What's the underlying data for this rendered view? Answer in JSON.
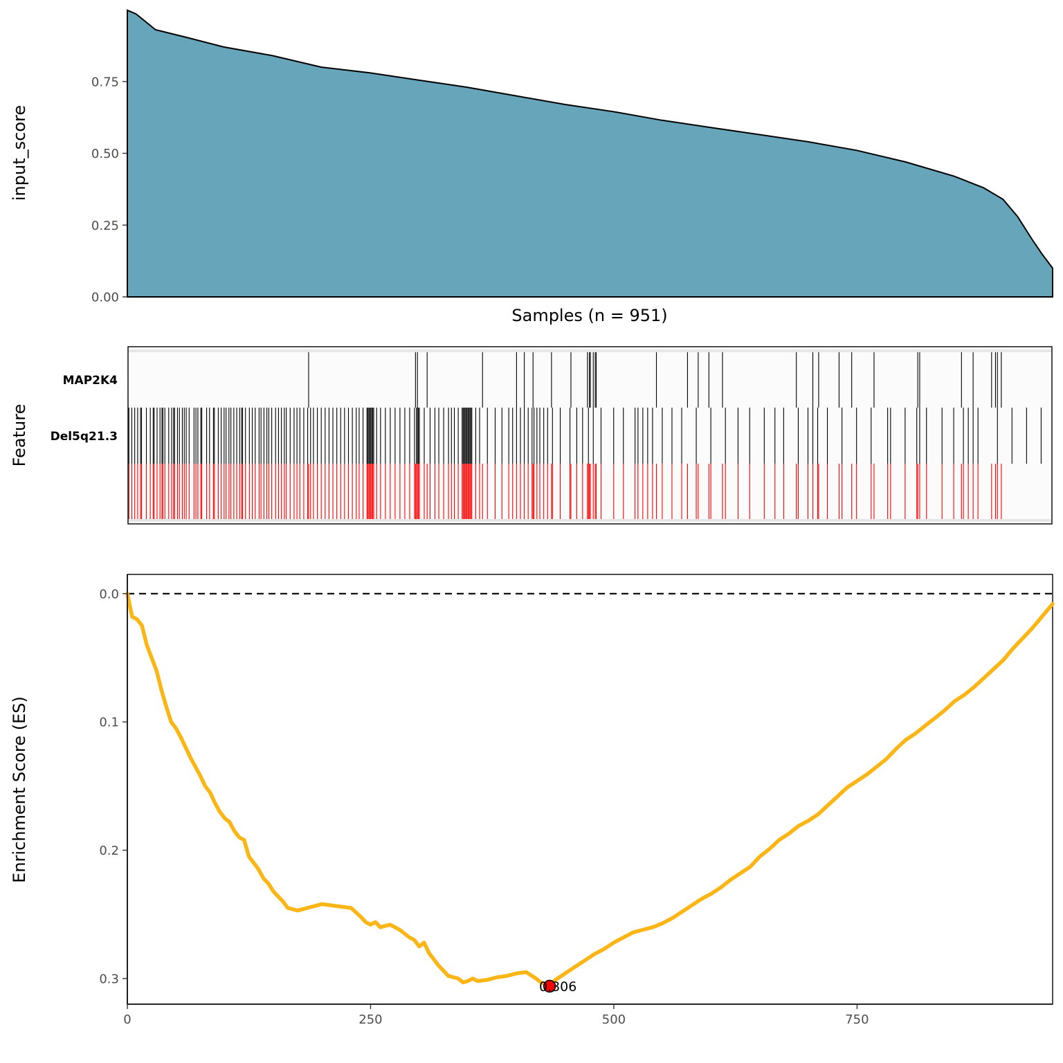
{
  "colors": {
    "area_fill": "#67a5ba",
    "area_stroke": "#000000",
    "feature_hit": "#000000",
    "combined_hit": "#ff0000",
    "background_track": "#e6e6e6",
    "es_line": "#fbb615",
    "peak_point": "#ff0000"
  },
  "chart_data": [
    {
      "type": "area",
      "ylabel": "input_score",
      "xlabel": "Samples (n = 951)",
      "n_samples": 951,
      "ylim": [
        0,
        1.0
      ],
      "yticks": [
        0.0,
        0.25,
        0.5,
        0.75
      ],
      "ytick_labels": [
        "0.00",
        "0.25",
        "0.50",
        "0.75"
      ],
      "x": [
        1,
        10,
        30,
        60,
        100,
        150,
        200,
        250,
        300,
        350,
        400,
        450,
        500,
        550,
        600,
        650,
        700,
        750,
        800,
        850,
        880,
        900,
        915,
        930,
        940,
        951
      ],
      "values": [
        0.998,
        0.985,
        0.93,
        0.905,
        0.87,
        0.84,
        0.8,
        0.78,
        0.755,
        0.73,
        0.7,
        0.67,
        0.645,
        0.615,
        0.59,
        0.565,
        0.54,
        0.51,
        0.47,
        0.42,
        0.38,
        0.34,
        0.28,
        0.2,
        0.15,
        0.1
      ]
    },
    {
      "type": "heatmap",
      "ylabel": "Feature",
      "rows": [
        {
          "label": "MAP2K4",
          "color": "#000000",
          "hits": [
            186,
            296,
            298,
            308,
            365,
            400,
            408,
            417,
            436,
            456,
            473,
            475,
            476,
            479,
            481,
            482,
            544,
            576,
            587,
            598,
            612,
            688,
            705,
            711,
            732,
            745,
            768,
            813,
            815,
            858,
            870,
            889,
            893,
            895,
            899
          ]
        },
        {
          "label": "Del5q21.3",
          "color": "#000000",
          "hits": [
            1,
            4,
            7,
            10,
            13,
            14,
            19,
            23,
            26,
            27,
            30,
            33,
            35,
            36,
            38,
            42,
            45,
            47,
            48,
            51,
            53,
            56,
            58,
            60,
            63,
            68,
            70,
            72,
            75,
            76,
            81,
            84,
            88,
            89,
            93,
            96,
            99,
            101,
            104,
            106,
            109,
            112,
            115,
            117,
            118,
            121,
            125,
            128,
            131,
            135,
            137,
            140,
            143,
            145,
            148,
            152,
            155,
            158,
            161,
            163,
            167,
            171,
            174,
            177,
            181,
            185,
            188,
            191,
            195,
            199,
            203,
            207,
            211,
            215,
            219,
            223,
            227,
            231,
            235,
            238,
            242,
            246,
            247,
            248,
            249,
            250,
            251,
            252,
            253,
            256,
            260,
            265,
            270,
            275,
            280,
            285,
            290,
            295,
            297,
            298,
            299,
            300,
            305,
            311,
            316,
            320,
            325,
            330,
            333,
            336,
            340,
            344,
            345,
            346,
            347,
            348,
            349,
            350,
            351,
            352,
            353,
            354,
            358,
            362,
            370,
            378,
            385,
            392,
            396,
            400,
            404,
            408,
            412,
            416,
            418,
            421,
            424,
            428,
            432,
            437,
            445,
            455,
            462,
            468,
            474,
            479,
            487,
            500,
            510,
            522,
            525,
            530,
            535,
            540,
            550,
            560,
            570,
            585,
            600,
            615,
            628,
            640,
            655,
            666,
            675,
            690,
            700,
            705,
            710,
            720,
            735,
            750,
            765,
            782,
            785,
            800,
            812,
            815,
            822,
            838,
            850,
            860,
            865,
            870,
            875,
            895,
            910,
            925,
            940
          ]
        },
        {
          "label": "",
          "color": "#ff0000",
          "hits": [
            1,
            4,
            7,
            10,
            13,
            14,
            19,
            23,
            26,
            27,
            30,
            33,
            35,
            36,
            38,
            42,
            45,
            47,
            48,
            51,
            53,
            56,
            58,
            60,
            63,
            68,
            70,
            72,
            75,
            76,
            81,
            84,
            88,
            89,
            93,
            96,
            99,
            101,
            104,
            106,
            109,
            112,
            115,
            117,
            118,
            121,
            125,
            128,
            131,
            135,
            137,
            140,
            143,
            145,
            148,
            152,
            155,
            158,
            161,
            163,
            167,
            171,
            174,
            177,
            181,
            185,
            186,
            188,
            191,
            195,
            199,
            203,
            207,
            211,
            215,
            219,
            223,
            227,
            231,
            235,
            238,
            242,
            246,
            247,
            248,
            249,
            250,
            251,
            252,
            253,
            256,
            260,
            265,
            270,
            275,
            280,
            285,
            290,
            295,
            296,
            297,
            298,
            299,
            300,
            305,
            308,
            311,
            316,
            320,
            325,
            330,
            333,
            336,
            340,
            344,
            345,
            346,
            347,
            348,
            349,
            350,
            351,
            352,
            353,
            354,
            358,
            362,
            365,
            370,
            378,
            385,
            392,
            396,
            400,
            404,
            408,
            412,
            416,
            417,
            418,
            421,
            424,
            428,
            432,
            436,
            437,
            445,
            455,
            456,
            462,
            468,
            473,
            474,
            475,
            476,
            479,
            481,
            482,
            487,
            500,
            510,
            522,
            525,
            530,
            535,
            540,
            544,
            550,
            560,
            570,
            576,
            585,
            587,
            598,
            600,
            612,
            615,
            628,
            640,
            655,
            666,
            675,
            688,
            690,
            700,
            705,
            710,
            711,
            720,
            732,
            735,
            745,
            750,
            765,
            768,
            782,
            785,
            800,
            812,
            813,
            815,
            822,
            838,
            850,
            858,
            860,
            865,
            870,
            875,
            889,
            893,
            895,
            899
          ]
        }
      ]
    },
    {
      "type": "line",
      "ylabel": "Enrichment Score (ES)",
      "xlim": [
        0,
        951
      ],
      "ylim": [
        -0.015,
        0.32
      ],
      "y_reversed": true,
      "xticks": [
        0,
        250,
        500,
        750
      ],
      "xtick_labels": [
        "0",
        "250",
        "500",
        "750"
      ],
      "yticks": [
        0.0,
        0.1,
        0.2,
        0.3
      ],
      "ytick_labels": [
        "0.0",
        "0.1",
        "0.2",
        "0.3"
      ],
      "reference_line": 0.0,
      "x": [
        0,
        5,
        10,
        15,
        20,
        25,
        30,
        35,
        40,
        45,
        50,
        55,
        60,
        65,
        70,
        75,
        80,
        85,
        90,
        95,
        100,
        105,
        110,
        115,
        120,
        125,
        130,
        135,
        140,
        145,
        150,
        155,
        160,
        165,
        170,
        175,
        180,
        185,
        190,
        195,
        200,
        210,
        220,
        230,
        240,
        245,
        250,
        255,
        260,
        270,
        280,
        290,
        295,
        300,
        305,
        310,
        320,
        330,
        340,
        345,
        350,
        355,
        360,
        370,
        380,
        390,
        400,
        410,
        420,
        425,
        434,
        440,
        450,
        460,
        470,
        480,
        490,
        500,
        510,
        520,
        530,
        540,
        550,
        560,
        570,
        580,
        590,
        600,
        610,
        620,
        630,
        640,
        650,
        660,
        670,
        680,
        690,
        700,
        710,
        720,
        730,
        740,
        750,
        760,
        770,
        780,
        790,
        800,
        810,
        820,
        830,
        840,
        850,
        860,
        870,
        880,
        890,
        900,
        910,
        920,
        930,
        940,
        951
      ],
      "y": [
        0.0,
        0.018,
        0.02,
        0.025,
        0.04,
        0.05,
        0.06,
        0.075,
        0.088,
        0.1,
        0.105,
        0.112,
        0.12,
        0.128,
        0.135,
        0.142,
        0.15,
        0.155,
        0.163,
        0.17,
        0.175,
        0.178,
        0.185,
        0.19,
        0.192,
        0.205,
        0.21,
        0.215,
        0.222,
        0.226,
        0.232,
        0.236,
        0.24,
        0.245,
        0.246,
        0.247,
        0.246,
        0.245,
        0.244,
        0.243,
        0.242,
        0.243,
        0.244,
        0.245,
        0.252,
        0.256,
        0.258,
        0.256,
        0.26,
        0.258,
        0.262,
        0.268,
        0.27,
        0.275,
        0.272,
        0.28,
        0.29,
        0.298,
        0.3,
        0.303,
        0.302,
        0.3,
        0.302,
        0.301,
        0.299,
        0.298,
        0.296,
        0.295,
        0.3,
        0.303,
        0.306,
        0.301,
        0.296,
        0.291,
        0.286,
        0.281,
        0.277,
        0.272,
        0.268,
        0.264,
        0.262,
        0.26,
        0.257,
        0.253,
        0.248,
        0.243,
        0.238,
        0.234,
        0.229,
        0.223,
        0.218,
        0.213,
        0.205,
        0.199,
        0.192,
        0.187,
        0.181,
        0.177,
        0.172,
        0.165,
        0.158,
        0.151,
        0.146,
        0.141,
        0.135,
        0.129,
        0.121,
        0.114,
        0.109,
        0.103,
        0.097,
        0.091,
        0.084,
        0.079,
        0.073,
        0.066,
        0.059,
        0.052,
        0.043,
        0.035,
        0.027,
        0.018,
        0.008
      ],
      "peak": {
        "x": 434,
        "y": 0.306,
        "label": "0.306"
      }
    }
  ]
}
